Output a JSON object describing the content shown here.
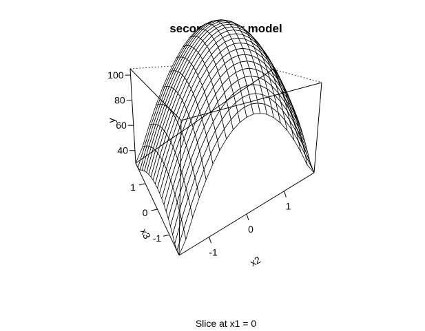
{
  "chart_data": {
    "type": "surface3d",
    "title": "second-order model",
    "subtitle": "Slice at x1 = 0",
    "xlabel": "x2",
    "ylabel": "x3",
    "zlabel": "y",
    "xlim": [
      -1.8,
      1.8
    ],
    "ylim": [
      -1.8,
      1.8
    ],
    "zlim": [
      30,
      105
    ],
    "x_ticks": [
      -1,
      0,
      1
    ],
    "y_ticks": [
      -1,
      0,
      1
    ],
    "z_ticks": [
      40,
      60,
      80,
      100
    ],
    "x_tick_labels": [
      "-1",
      "0",
      "1"
    ],
    "y_tick_labels": [
      "-1",
      "0",
      "1"
    ],
    "z_tick_labels": [
      "40",
      "60",
      "80",
      "100"
    ],
    "grid_n": 21,
    "model": {
      "intercept": 100,
      "x2_quadratic": -18,
      "x3_quadratic": -5
    }
  }
}
